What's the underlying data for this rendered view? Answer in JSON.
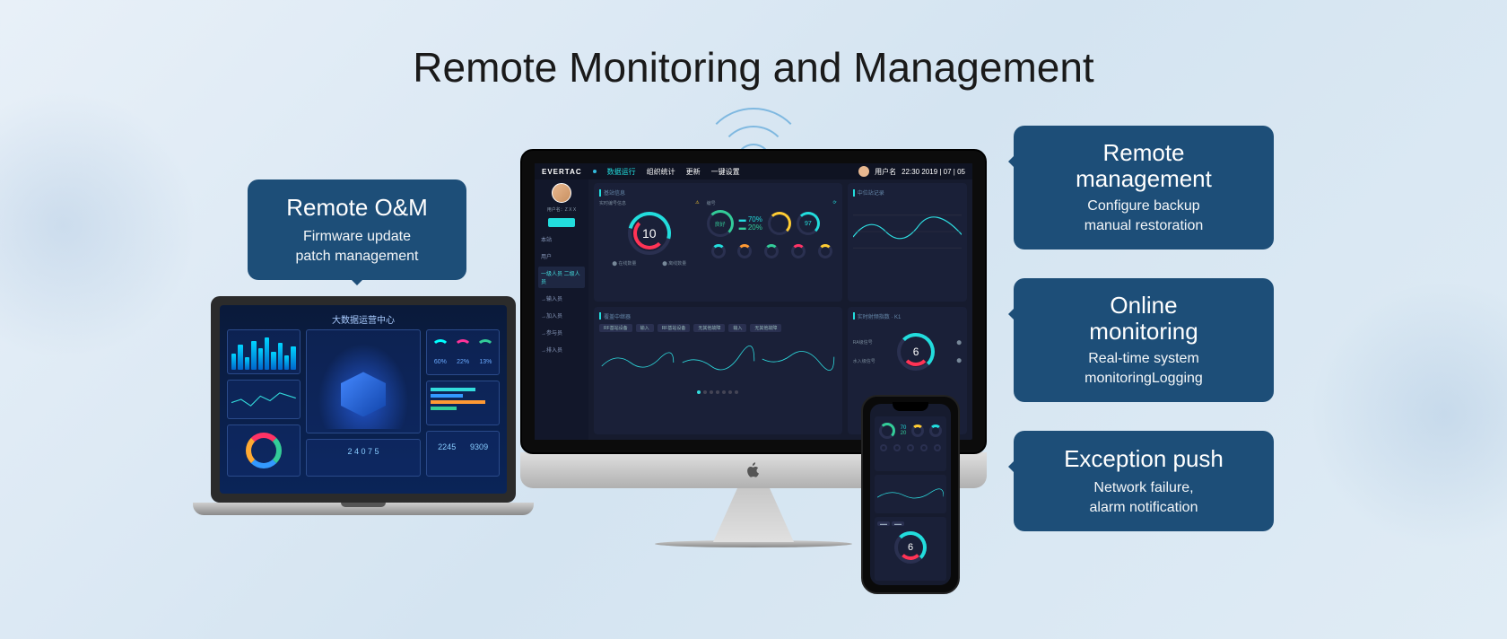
{
  "title": "Remote Monitoring and Management",
  "callouts": {
    "left": {
      "title": "Remote O&M",
      "sub1": "Firmware update",
      "sub2": "patch management"
    },
    "r1": {
      "title": "Remote management",
      "sub1": "Configure backup",
      "sub2": "manual restoration"
    },
    "r2": {
      "title": "Online monitoring",
      "sub1": "Real-time system",
      "sub2": "monitoringLogging"
    },
    "r3": {
      "title": "Exception push",
      "sub1": "Network failure,",
      "sub2": "alarm notification"
    }
  },
  "laptop": {
    "title": "大数据运营中心",
    "bars": [
      45,
      70,
      35,
      80,
      60,
      90,
      50,
      75,
      40,
      65
    ],
    "pct1": "60%",
    "pct2": "22%",
    "pct3": "13%",
    "kpi1": "2245",
    "kpi2": "9309",
    "bottom_counter": "2 4 0 7 5"
  },
  "imac": {
    "brand": "EVERTAC",
    "header_date": "22:30   2019 | 07 | 05",
    "header_user": "用户名",
    "nav": [
      "数据运行",
      "组织统计",
      "更新",
      "一键设置"
    ],
    "sidebar_name": "用户名：Z X X",
    "sidebar_items": [
      "本站",
      "用户",
      "一级人员  二级人员",
      "→输入员",
      "→加入员",
      "→参与员",
      "→排入员"
    ],
    "panel1_title": "基站信息",
    "panel1_sub1": "实时编号信息",
    "panel1_sub2": "编号",
    "gauge_main": "10",
    "status_word": "良好",
    "pct_a": "70%",
    "pct_b": "20%",
    "gauge_small_v1": "97",
    "panel1_right_title": "中位站记录",
    "panel2_title": "覆盖中继器",
    "panel2_btn1": "RF基站设备",
    "panel2_btn2": "输入",
    "panel2_btn3": "RF基站设备",
    "panel2_btn4": "无其他故障",
    "panel2_btn5": "输入",
    "panel2_btn6": "无其他故障",
    "panel2_right_title": "实时射频指数 · K1",
    "panel2_gauge": "6",
    "panel2_sidelabel1": "RA级信号",
    "panel2_sidelabel2": "水入级信号"
  },
  "iphone": {
    "top_pct1": "70",
    "top_pct2": "20",
    "gauge": "6"
  },
  "colors": {
    "callout_bg": "#1d4e78",
    "dash_bg": "#161b2e",
    "panel_bg": "#1a2038",
    "accent_cyan": "#2ddde0",
    "accent_red": "#ff3355",
    "accent_orange": "#ff9933",
    "accent_green": "#33cc88",
    "accent_yellow": "#ffcc33"
  }
}
